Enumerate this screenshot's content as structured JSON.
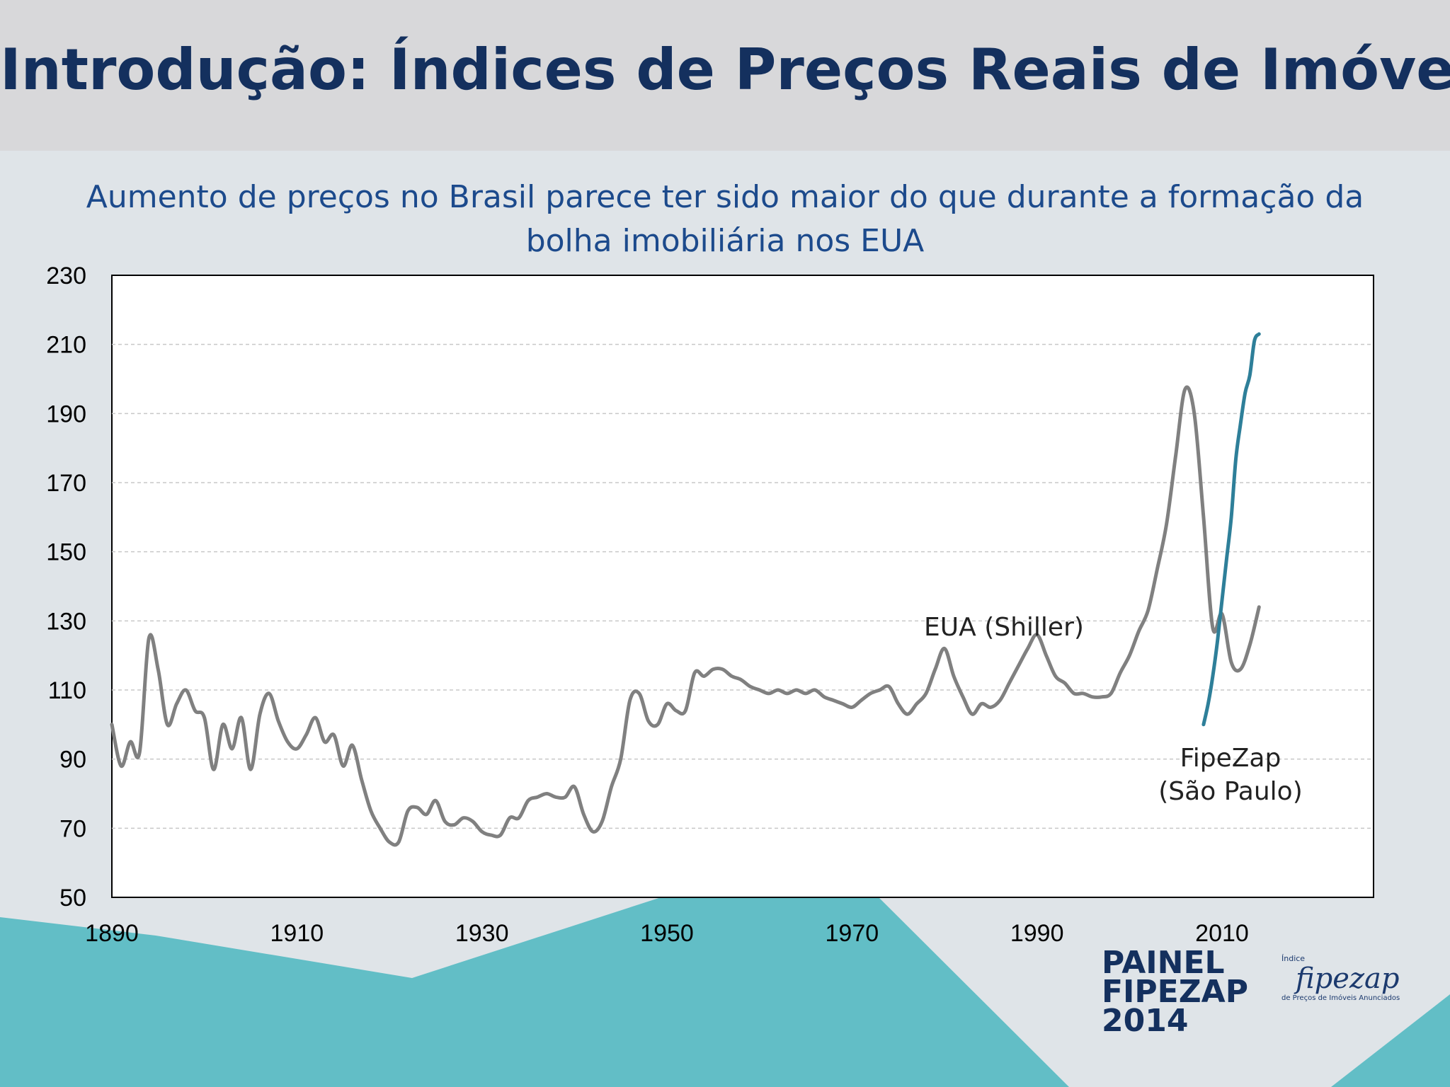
{
  "slide": {
    "title": "Introdução: Índices de Preços Reais de Imóveis",
    "subtitle": "Aumento de preços no Brasil parece ter sido maior do que durante a formação da bolha imobiliária nos EUA"
  },
  "logo": {
    "painel_lines": [
      "PAINEL",
      "FIPEZAP",
      "2014"
    ],
    "fipezap_top": "Índice",
    "fipezap_name": "fipezap",
    "fipezap_tag": "de Preços de Imóveis Anunciados"
  },
  "colors": {
    "us_series": "#808080",
    "br_series": "#2e7f99",
    "title": "#14305e",
    "subtitle": "#1c4a8c",
    "teal_shape": "#62bec6"
  },
  "chart_data": {
    "type": "line",
    "title": "",
    "xlabel": "",
    "ylabel": "",
    "xlim": [
      1890,
      2016
    ],
    "ylim": [
      50,
      230
    ],
    "xticks": [
      1890,
      1910,
      1930,
      1950,
      1970,
      1990,
      2010
    ],
    "yticks": [
      50,
      70,
      90,
      110,
      130,
      150,
      170,
      190,
      210,
      230
    ],
    "grid": "horizontal dashed",
    "annotations": [
      {
        "text": "EUA (Shiller)",
        "series": 0
      },
      {
        "text": "FipeZap",
        "series": 1,
        "line": 1
      },
      {
        "text": "(São Paulo)",
        "series": 1,
        "line": 2
      }
    ],
    "series": [
      {
        "name": "EUA (Shiller)",
        "x": [
          1890,
          1891,
          1892,
          1893,
          1894,
          1895,
          1896,
          1897,
          1898,
          1899,
          1900,
          1901,
          1902,
          1903,
          1904,
          1905,
          1906,
          1907,
          1908,
          1909,
          1910,
          1911,
          1912,
          1913,
          1914,
          1915,
          1916,
          1917,
          1918,
          1919,
          1920,
          1921,
          1922,
          1923,
          1924,
          1925,
          1926,
          1927,
          1928,
          1929,
          1930,
          1931,
          1932,
          1933,
          1934,
          1935,
          1936,
          1937,
          1938,
          1939,
          1940,
          1941,
          1942,
          1943,
          1944,
          1945,
          1946,
          1947,
          1948,
          1949,
          1950,
          1951,
          1952,
          1953,
          1954,
          1955,
          1956,
          1957,
          1958,
          1959,
          1960,
          1961,
          1962,
          1963,
          1964,
          1965,
          1966,
          1967,
          1968,
          1969,
          1970,
          1971,
          1972,
          1973,
          1974,
          1975,
          1976,
          1977,
          1978,
          1979,
          1980,
          1981,
          1982,
          1983,
          1984,
          1985,
          1986,
          1987,
          1988,
          1989,
          1990,
          1991,
          1992,
          1993,
          1994,
          1995,
          1996,
          1997,
          1998,
          1999,
          2000,
          2001,
          2002,
          2003,
          2004,
          2005,
          2006,
          2007,
          2008,
          2009,
          2010,
          2011,
          2012,
          2013,
          2014
        ],
        "values": [
          100,
          88,
          95,
          92,
          125,
          116,
          100,
          106,
          110,
          104,
          102,
          87,
          100,
          93,
          102,
          87,
          103,
          109,
          101,
          95,
          93,
          97,
          102,
          95,
          97,
          88,
          94,
          84,
          75,
          70,
          66,
          66,
          75,
          76,
          74,
          78,
          72,
          71,
          73,
          72,
          69,
          68,
          68,
          73,
          73,
          78,
          79,
          80,
          79,
          79,
          82,
          74,
          69,
          72,
          82,
          90,
          107,
          109,
          101,
          100,
          106,
          104,
          104,
          115,
          114,
          116,
          116,
          114,
          113,
          111,
          110,
          109,
          110,
          109,
          110,
          109,
          110,
          108,
          107,
          106,
          105,
          107,
          109,
          110,
          111,
          106,
          103,
          106,
          109,
          116,
          122,
          114,
          108,
          103,
          106,
          105,
          107,
          112,
          117,
          122,
          126,
          120,
          114,
          112,
          109,
          109,
          108,
          108,
          109,
          115,
          120,
          127,
          133,
          145,
          158,
          178,
          197,
          190,
          160,
          128,
          132,
          118,
          116,
          123,
          134
        ]
      },
      {
        "name": "FipeZap (São Paulo)",
        "x": [
          2008,
          2008.5,
          2009,
          2009.5,
          2010,
          2010.5,
          2011,
          2011.5,
          2012,
          2012.5,
          2013,
          2013.5,
          2014
        ],
        "values": [
          100,
          106,
          114,
          124,
          136,
          148,
          160,
          177,
          187,
          196,
          201,
          211,
          213
        ]
      }
    ]
  }
}
